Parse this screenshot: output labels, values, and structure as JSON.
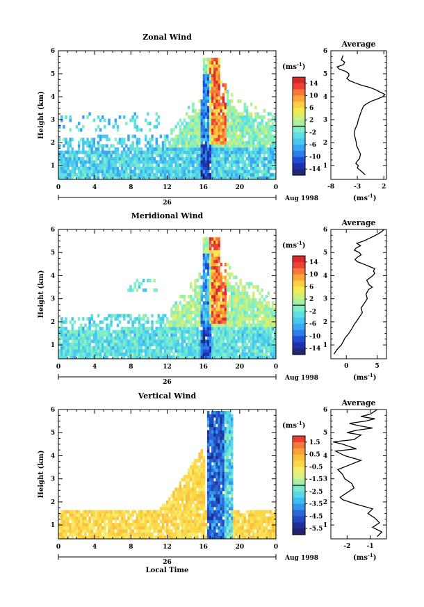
{
  "chart_data": [
    {
      "type": "heatmap",
      "title": "Zonal Wind",
      "ylabel": "Height (km)",
      "units": "(ms",
      "units_exp": "-1",
      "x_ticks": [
        "0",
        "4",
        "8",
        "12",
        "16",
        "20",
        "0"
      ],
      "y_ticks": [
        "1",
        "2",
        "3",
        "4",
        "5",
        "6"
      ],
      "day_label": "26",
      "date_label": "Aug 1998",
      "xlim": [
        0,
        24
      ],
      "ylim": [
        0.4,
        6
      ],
      "colorbar_labels": [
        "14",
        "10",
        "6",
        "2",
        "-2",
        "-6",
        "-10",
        "-14"
      ],
      "colorbar_range": [
        -16,
        16
      ],
      "average": {
        "title": "Average",
        "x_ticks": [
          "-8",
          "-3",
          "2"
        ],
        "xlim": [
          -8,
          2.5
        ],
        "xlabel": "(ms",
        "xlabel_exp": "-1",
        "x": [
          -1.5,
          -2.0,
          -2.5,
          -3.0,
          -2.8,
          -3.3,
          -3.0,
          -2.6,
          -2.5,
          -2.4,
          -2.6,
          -2.8,
          -3.0,
          -3.2,
          -3.2,
          -3.4,
          -3.6,
          -3.4,
          -3.0,
          -2.8,
          -2.5,
          -2.2,
          -1.8,
          -1.2,
          -0.4,
          0.8,
          1.8,
          2.2,
          1.3,
          0.5,
          -0.6,
          -2.2,
          -3.4,
          -4.5,
          -5.0,
          -4.6,
          -4.6,
          -5.2,
          -6.4,
          -6.8,
          -5.6,
          -5.4,
          -6.0,
          -5.7
        ],
        "y": [
          0.6,
          0.7,
          0.8,
          0.9,
          1.0,
          1.1,
          1.2,
          1.3,
          1.4,
          1.5,
          1.6,
          1.7,
          1.8,
          1.9,
          2.0,
          2.2,
          2.4,
          2.6,
          2.8,
          3.0,
          3.2,
          3.4,
          3.6,
          3.7,
          3.8,
          3.9,
          4.0,
          4.1,
          4.2,
          4.3,
          4.4,
          4.5,
          4.6,
          4.7,
          4.8,
          4.9,
          5.0,
          5.1,
          5.2,
          5.3,
          5.4,
          5.5,
          5.6,
          5.8
        ]
      }
    },
    {
      "type": "heatmap",
      "title": "Meridional Wind",
      "ylabel": "Height (km)",
      "units": "(ms",
      "units_exp": "-1",
      "x_ticks": [
        "0",
        "4",
        "8",
        "12",
        "16",
        "20",
        "0"
      ],
      "y_ticks": [
        "1",
        "2",
        "3",
        "4",
        "5",
        "6"
      ],
      "day_label": "26",
      "date_label": "Aug 1998",
      "xlim": [
        0,
        24
      ],
      "ylim": [
        0.4,
        6
      ],
      "colorbar_labels": [
        "14",
        "10",
        "6",
        "2",
        "-2",
        "-6",
        "-10",
        "-14"
      ],
      "colorbar_range": [
        -16,
        16
      ],
      "average": {
        "title": "Average",
        "x_ticks": [
          "0",
          "5"
        ],
        "xlim": [
          -2.5,
          6.5
        ],
        "xlabel": "(ms",
        "xlabel_exp": "-1",
        "x": [
          -2.0,
          -1.5,
          -0.8,
          -0.6,
          -0.2,
          0.4,
          0.9,
          1.3,
          1.6,
          2.1,
          2.6,
          2.4,
          2.9,
          3.4,
          3.2,
          3.6,
          4.2,
          3.7,
          3.3,
          4.3,
          4.6,
          4.4,
          4.6,
          3.7,
          2.8,
          1.8,
          1.4,
          1.8,
          2.4,
          2.1,
          1.3,
          1.6,
          2.3,
          1.7,
          2.8,
          3.6,
          4.4,
          5.1,
          5.7,
          6.1
        ],
        "y": [
          0.6,
          0.8,
          1.0,
          1.1,
          1.3,
          1.5,
          1.7,
          1.9,
          2.0,
          2.2,
          2.4,
          2.6,
          2.8,
          3.0,
          3.2,
          3.4,
          3.5,
          3.6,
          3.8,
          4.0,
          4.1,
          4.2,
          4.3,
          4.4,
          4.5,
          4.6,
          4.7,
          4.8,
          4.9,
          5.0,
          5.1,
          5.2,
          5.3,
          5.4,
          5.5,
          5.6,
          5.7,
          5.8,
          5.9,
          6.0
        ]
      }
    },
    {
      "type": "heatmap",
      "title": "Vertical Wind",
      "ylabel": "Height (km)",
      "xlabel": "Local Time",
      "units": "(ms",
      "units_exp": "-1",
      "x_ticks": [
        "0",
        "4",
        "8",
        "12",
        "16",
        "20",
        "0"
      ],
      "y_ticks": [
        "1",
        "2",
        "3",
        "4",
        "5",
        "6"
      ],
      "day_label": "26",
      "date_label": "Aug 1998",
      "xlim": [
        0,
        24
      ],
      "ylim": [
        0.4,
        6
      ],
      "colorbar_labels": [
        "1.5",
        "0.5",
        "-0.5",
        "-1.5",
        "-2.5",
        "-3.5",
        "-4.5",
        "-5.5"
      ],
      "colorbar_range": [
        -6,
        2
      ],
      "average": {
        "title": "Average",
        "x_ticks": [
          "-2",
          "-1"
        ],
        "xlim": [
          -2.7,
          -0.3
        ],
        "xlabel": "(ms",
        "xlabel_exp": "-1",
        "x": [
          -0.7,
          -0.5,
          -0.9,
          -0.6,
          -0.8,
          -1.1,
          -0.9,
          -1.6,
          -1.9,
          -2.2,
          -2.3,
          -2.0,
          -1.7,
          -1.8,
          -2.1,
          -2.2,
          -2.4,
          -1.9,
          -1.4,
          -2.1,
          -2.5,
          -1.6,
          -2.2,
          -2.6,
          -1.7,
          -1.4,
          -2.0,
          -1.6,
          -0.9,
          -1.5,
          -1.9,
          -1.2,
          -0.8,
          -1.4,
          -1.0,
          -0.7
        ],
        "y": [
          0.5,
          0.7,
          0.9,
          1.1,
          1.3,
          1.5,
          1.7,
          1.9,
          2.0,
          2.1,
          2.2,
          2.4,
          2.6,
          2.8,
          3.0,
          3.2,
          3.4,
          3.6,
          3.8,
          4.0,
          4.2,
          4.3,
          4.5,
          4.6,
          4.7,
          4.9,
          5.0,
          5.1,
          5.2,
          5.3,
          5.4,
          5.5,
          5.6,
          5.7,
          5.8,
          6.0
        ]
      }
    }
  ]
}
